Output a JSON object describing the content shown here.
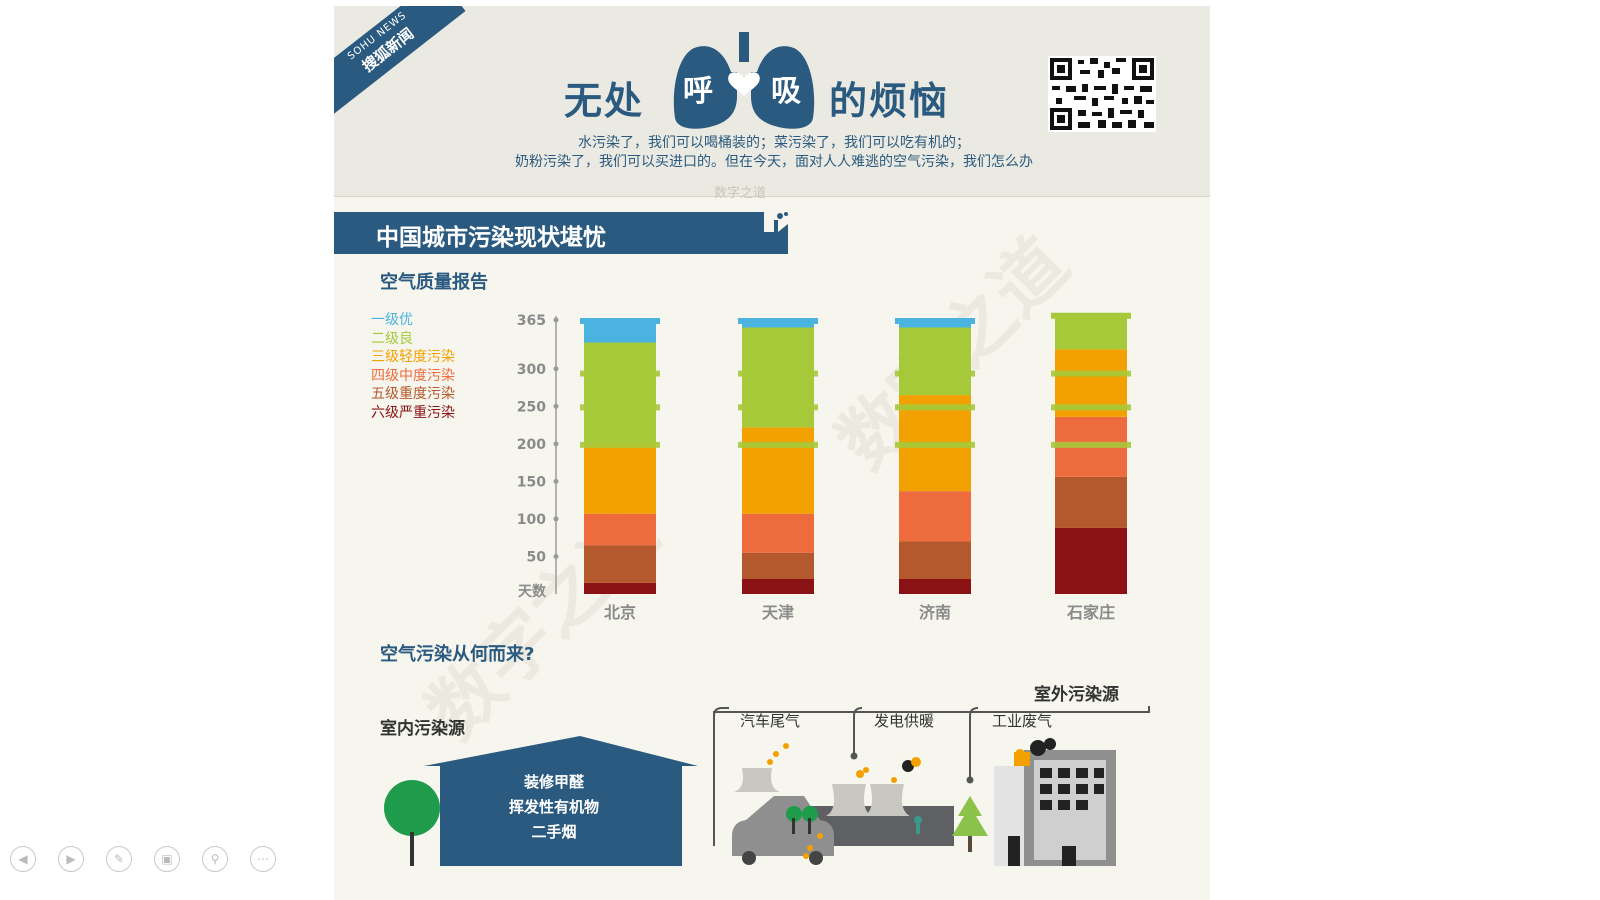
{
  "header": {
    "brand_en": "SOHU NEWS",
    "brand_cn": "搜狐新闻",
    "title_left": "无处",
    "title_lung_1": "呼",
    "title_lung_2": "吸",
    "title_right": "的烦恼",
    "intro_line_1": "水污染了，我们可以喝桶装的；菜污染了，我们可以吃有机的；",
    "intro_line_2": "奶粉污染了，我们可以买进口的。但在今天，面对人人难逃的空气污染，我们怎么办",
    "watermark": "数字之道"
  },
  "section": {
    "banner": "中国城市污染现状堪忧",
    "chart_title": "空气质量报告",
    "source_title": "空气污染从何而来?"
  },
  "legend": [
    {
      "label": "一级优",
      "color": "#4ab3e0"
    },
    {
      "label": "二级良",
      "color": "#a6c93a"
    },
    {
      "label": "三级轻度污染",
      "color": "#f3a100"
    },
    {
      "label": "四级中度污染",
      "color": "#ee6b3d"
    },
    {
      "label": "五级重度污染",
      "color": "#b3592d"
    },
    {
      "label": "六级严重污染",
      "color": "#8a1214"
    }
  ],
  "chart_data": {
    "type": "bar",
    "stacked": true,
    "categories": [
      "北京",
      "天津",
      "济南",
      "石家庄"
    ],
    "y_unit_label": "天数",
    "y_ticks": [
      50,
      100,
      150,
      200,
      250,
      300,
      365
    ],
    "ylim": [
      0,
      365
    ],
    "series": [
      {
        "name": "六级严重污染",
        "color": "#8a1214",
        "values": [
          15,
          20,
          20,
          88
        ]
      },
      {
        "name": "五级重度污染",
        "color": "#b3592d",
        "values": [
          50,
          35,
          50,
          68
        ]
      },
      {
        "name": "四级中度污染",
        "color": "#ee6b3d",
        "values": [
          42,
          52,
          67,
          80
        ]
      },
      {
        "name": "三级轻度污染",
        "color": "#f3a100",
        "values": [
          93,
          115,
          128,
          90
        ]
      },
      {
        "name": "二级良",
        "color": "#a6c93a",
        "values": [
          135,
          133,
          90,
          46
        ]
      },
      {
        "name": "一级优",
        "color": "#4ab3e0",
        "values": [
          30,
          10,
          10,
          0
        ]
      }
    ]
  },
  "sources": {
    "outdoor_title": "室外污染源",
    "indoor_title": "室内污染源",
    "outdoor_items": [
      "汽车尾气",
      "发电供暖",
      "工业废气"
    ],
    "indoor_items": [
      "装修甲醛",
      "挥发性有机物",
      "二手烟"
    ]
  },
  "toolbar": [
    {
      "name": "prev-icon",
      "glyph": "◀"
    },
    {
      "name": "next-icon",
      "glyph": "▶"
    },
    {
      "name": "pen-icon",
      "glyph": "✎"
    },
    {
      "name": "slides-icon",
      "glyph": "▣"
    },
    {
      "name": "zoom-icon",
      "glyph": "⚲"
    },
    {
      "name": "more-icon",
      "glyph": "⋯"
    }
  ]
}
